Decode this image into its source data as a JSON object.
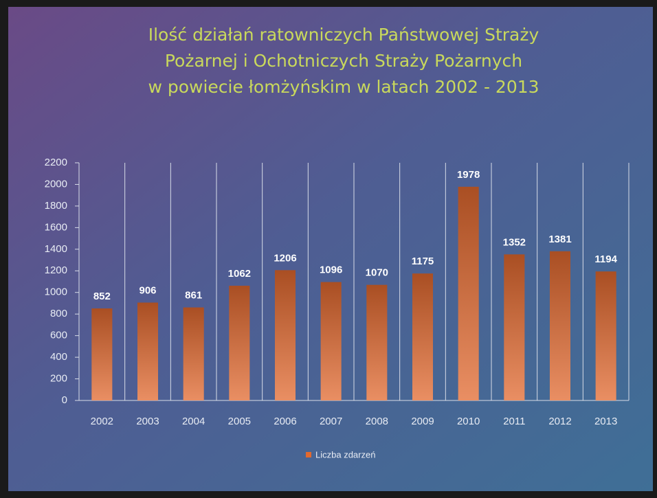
{
  "chart_data": {
    "type": "bar",
    "title": [
      "Ilość działań ratowniczych Państwowej Straży",
      "Pożarnej i Ochotniczych Straży Pożarnych",
      "w powiecie łomżyńskim w latach 2002 - 2013"
    ],
    "categories": [
      "2002",
      "2003",
      "2004",
      "2005",
      "2006",
      "2007",
      "2008",
      "2009",
      "2010",
      "2011",
      "2012",
      "2013"
    ],
    "series": [
      {
        "name": "Liczba zdarzeń",
        "color": "#e2692f",
        "values": [
          852,
          906,
          861,
          1062,
          1206,
          1096,
          1070,
          1175,
          1978,
          1352,
          1381,
          1194
        ]
      }
    ],
    "ylim": [
      0,
      2200
    ],
    "yticks": [
      0,
      200,
      400,
      600,
      800,
      1000,
      1200,
      1400,
      1600,
      1800,
      2000,
      2200
    ],
    "grid": true,
    "legend": "bottom"
  }
}
